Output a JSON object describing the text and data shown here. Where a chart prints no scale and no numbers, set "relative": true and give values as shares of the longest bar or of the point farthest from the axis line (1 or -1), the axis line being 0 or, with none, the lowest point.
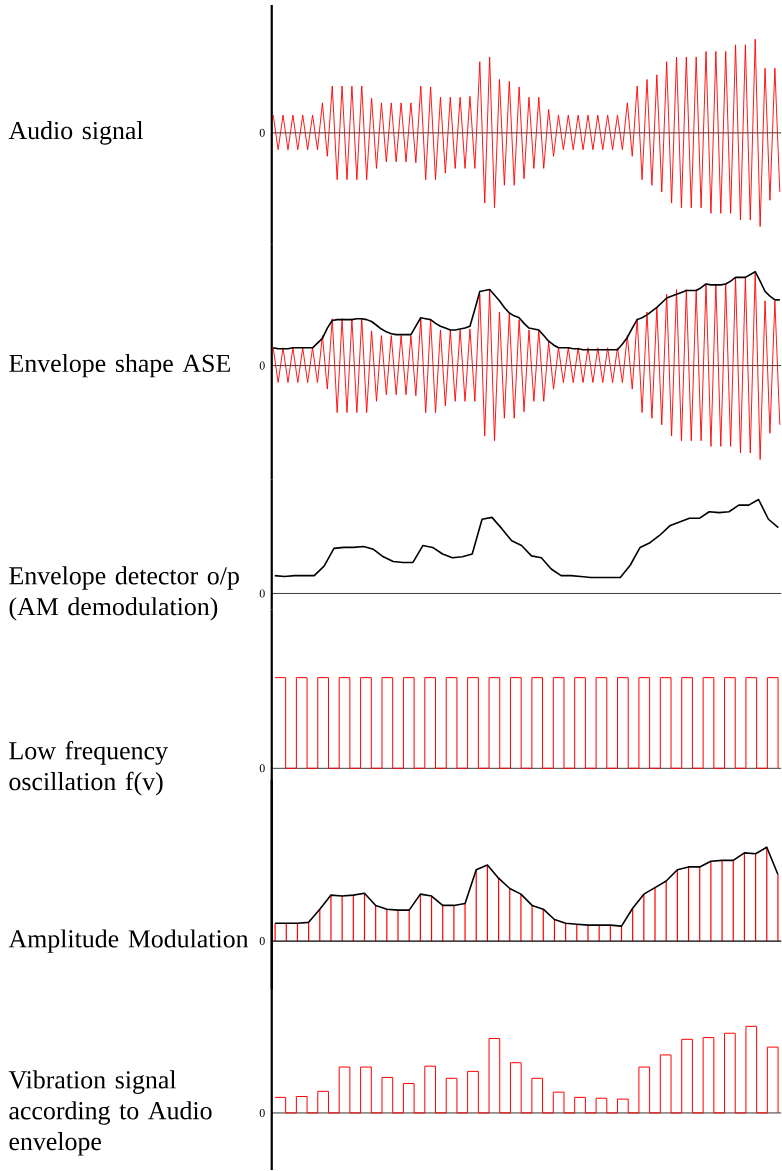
{
  "chart_data": [
    {
      "type": "line",
      "ylabel": "Audio signal",
      "relative": true,
      "annotations": [
        "0"
      ],
      "categories": [
        null,
        null,
        null,
        null,
        null,
        null,
        null,
        null,
        null,
        null,
        null,
        null,
        null,
        null,
        null,
        null,
        null,
        null,
        null,
        null,
        null,
        null,
        null,
        null,
        null,
        null,
        null,
        null,
        null,
        null,
        null,
        null,
        null,
        null,
        null,
        null,
        null,
        null,
        null,
        null,
        null,
        null,
        null,
        null,
        null,
        null,
        null,
        null,
        null,
        null,
        null,
        null,
        null,
        null,
        null,
        null,
        null,
        null,
        null,
        null,
        null,
        null,
        null,
        null,
        null,
        null,
        null,
        null,
        null,
        null,
        null,
        null,
        null,
        null,
        null,
        null,
        null,
        null,
        null,
        null,
        null,
        null,
        null,
        null,
        null,
        null,
        null,
        null,
        null,
        null,
        null,
        null,
        null,
        null,
        null,
        null,
        null,
        null,
        null,
        null,
        null,
        null,
        null,
        null
      ],
      "series": [
        {
          "color": "#ff0000",
          "values": [
            0.19,
            -0.18,
            0.19,
            -0.18,
            0.19,
            -0.18,
            0.19,
            -0.18,
            0.19,
            -0.18,
            0.32,
            -0.25,
            0.5,
            -0.5,
            0.5,
            -0.5,
            0.5,
            -0.5,
            0.5,
            -0.5,
            0.37,
            -0.38,
            0.32,
            -0.31,
            0.32,
            -0.31,
            0.32,
            -0.31,
            0.32,
            -0.32,
            0.5,
            -0.5,
            0.49,
            -0.5,
            0.38,
            -0.43,
            0.38,
            -0.38,
            0.38,
            -0.38,
            0.39,
            -0.38,
            0.76,
            -0.75,
            0.81,
            -0.8,
            0.57,
            -0.56,
            0.55,
            -0.56,
            0.49,
            -0.49,
            0.38,
            -0.38,
            0.38,
            -0.38,
            0.25,
            -0.25,
            0.19,
            -0.18,
            0.19,
            -0.18,
            0.19,
            -0.18,
            0.19,
            -0.18,
            0.19,
            -0.18,
            0.19,
            -0.18,
            0.19,
            -0.18,
            0.32,
            -0.25,
            0.5,
            -0.5,
            0.57,
            -0.56,
            0.62,
            -0.63,
            0.76,
            -0.75,
            0.81,
            -0.8,
            0.81,
            -0.8,
            0.81,
            -0.8,
            0.87,
            -0.86,
            0.87,
            -0.86,
            0.87,
            -0.86,
            0.94,
            -0.93,
            0.94,
            -0.93,
            1,
            -1,
            0.69,
            -0.72,
            0.69,
            -0.63
          ]
        }
      ]
    },
    {
      "type": "line",
      "ylabel": "Envelope shape ASE",
      "relative": true,
      "annotations": [
        "0"
      ],
      "categories": [
        null,
        null,
        null,
        null,
        null,
        null,
        null,
        null,
        null,
        null,
        null,
        null,
        null,
        null,
        null,
        null,
        null,
        null,
        null,
        null,
        null,
        null,
        null,
        null,
        null,
        null,
        null,
        null,
        null,
        null,
        null,
        null,
        null,
        null,
        null,
        null,
        null,
        null,
        null,
        null,
        null,
        null,
        null,
        null,
        null,
        null,
        null,
        null,
        null,
        null,
        null,
        null,
        null,
        null,
        null,
        null,
        null,
        null,
        null,
        null,
        null,
        null,
        null,
        null,
        null,
        null,
        null,
        null,
        null,
        null,
        null,
        null,
        null,
        null,
        null,
        null,
        null,
        null,
        null,
        null,
        null,
        null,
        null,
        null,
        null,
        null,
        null,
        null,
        null,
        null,
        null,
        null,
        null,
        null,
        null,
        null,
        null,
        null,
        null,
        null,
        null,
        null,
        null,
        null
      ],
      "series": [
        {
          "color": "#ff0000",
          "values": [
            0.19,
            -0.18,
            0.19,
            -0.18,
            0.19,
            -0.18,
            0.19,
            -0.18,
            0.19,
            -0.18,
            0.32,
            -0.25,
            0.5,
            -0.5,
            0.5,
            -0.5,
            0.5,
            -0.5,
            0.5,
            -0.5,
            0.37,
            -0.38,
            0.32,
            -0.31,
            0.32,
            -0.31,
            0.32,
            -0.31,
            0.32,
            -0.32,
            0.5,
            -0.5,
            0.49,
            -0.5,
            0.38,
            -0.43,
            0.38,
            -0.38,
            0.38,
            -0.38,
            0.39,
            -0.38,
            0.76,
            -0.75,
            0.81,
            -0.8,
            0.57,
            -0.56,
            0.55,
            -0.56,
            0.49,
            -0.49,
            0.38,
            -0.38,
            0.38,
            -0.38,
            0.25,
            -0.25,
            0.19,
            -0.18,
            0.19,
            -0.18,
            0.19,
            -0.18,
            0.19,
            -0.18,
            0.19,
            -0.18,
            0.19,
            -0.18,
            0.19,
            -0.18,
            0.32,
            -0.25,
            0.5,
            -0.5,
            0.57,
            -0.56,
            0.62,
            -0.63,
            0.76,
            -0.75,
            0.81,
            -0.8,
            0.81,
            -0.8,
            0.81,
            -0.8,
            0.87,
            -0.86,
            0.87,
            -0.86,
            0.87,
            -0.86,
            0.94,
            -0.93,
            0.94,
            -0.93,
            1,
            -1,
            0.69,
            -0.72,
            0.69,
            -0.63
          ]
        },
        {
          "color": "#000000",
          "values": [
            0.19,
            0.18,
            0.18,
            0.18,
            0.19,
            0.19,
            0.19,
            0.19,
            0.19,
            0.24,
            0.29,
            0.4,
            0.48,
            0.49,
            0.49,
            0.49,
            0.49,
            0.5,
            0.5,
            0.49,
            0.47,
            0.43,
            0.39,
            0.36,
            0.34,
            0.33,
            0.33,
            0.33,
            0.33,
            0.42,
            0.51,
            0.5,
            0.49,
            0.45,
            0.42,
            0.4,
            0.38,
            0.38,
            0.39,
            0.4,
            0.42,
            0.6,
            0.79,
            0.8,
            0.81,
            0.75,
            0.69,
            0.62,
            0.56,
            0.53,
            0.51,
            0.45,
            0.4,
            0.39,
            0.38,
            0.32,
            0.26,
            0.22,
            0.19,
            0.19,
            0.19,
            0.18,
            0.18,
            0.17,
            0.17,
            0.17,
            0.17,
            0.17,
            0.17,
            0.17,
            0.17,
            0.23,
            0.3,
            0.4,
            0.49,
            0.51,
            0.54,
            0.58,
            0.62,
            0.67,
            0.72,
            0.74,
            0.76,
            0.78,
            0.8,
            0.8,
            0.8,
            0.83,
            0.87,
            0.86,
            0.86,
            0.86,
            0.87,
            0.9,
            0.94,
            0.94,
            0.94,
            0.97,
            1,
            0.9,
            0.79,
            0.74,
            0.7,
            0.7
          ]
        }
      ]
    },
    {
      "type": "line",
      "ylabel": "Envelope detector o/p (AM demodulation)",
      "relative": true,
      "annotations": [
        "0"
      ],
      "categories": [
        null,
        null,
        null,
        null,
        null,
        null,
        null,
        null,
        null,
        null,
        null,
        null,
        null,
        null,
        null,
        null,
        null,
        null,
        null,
        null,
        null,
        null,
        null,
        null,
        null,
        null,
        null,
        null,
        null,
        null,
        null,
        null,
        null,
        null,
        null,
        null,
        null,
        null,
        null,
        null,
        null,
        null,
        null,
        null,
        null,
        null,
        null,
        null,
        null,
        null,
        null,
        null
      ],
      "series": [
        {
          "color": "#000000",
          "values": [
            0.19,
            0.18,
            0.19,
            0.19,
            0.19,
            0.29,
            0.48,
            0.49,
            0.49,
            0.5,
            0.47,
            0.39,
            0.34,
            0.33,
            0.33,
            0.51,
            0.49,
            0.42,
            0.38,
            0.39,
            0.42,
            0.79,
            0.81,
            0.69,
            0.56,
            0.51,
            0.4,
            0.38,
            0.26,
            0.19,
            0.19,
            0.18,
            0.17,
            0.17,
            0.17,
            0.17,
            0.3,
            0.49,
            0.54,
            0.62,
            0.72,
            0.76,
            0.8,
            0.8,
            0.87,
            0.86,
            0.87,
            0.94,
            0.94,
            1,
            0.79,
            0.7
          ]
        }
      ]
    },
    {
      "type": "step",
      "ylabel": "Low frequency oscillation f(v)",
      "relative": true,
      "annotations": [
        "0"
      ],
      "categories": [
        null,
        null,
        null,
        null,
        null,
        null,
        null,
        null,
        null,
        null,
        null,
        null,
        null,
        null,
        null,
        null,
        null,
        null,
        null,
        null,
        null,
        null,
        null,
        null,
        null,
        null,
        null,
        null,
        null,
        null,
        null,
        null,
        null,
        null,
        null,
        null,
        null,
        null,
        null,
        null,
        null,
        null,
        null,
        null,
        null,
        null,
        null,
        null
      ],
      "series": [
        {
          "color": "#ff0000",
          "values": [
            1,
            0,
            1,
            0,
            1,
            0,
            1,
            0,
            1,
            0,
            1,
            0,
            1,
            0,
            1,
            0,
            1,
            0,
            1,
            0,
            1,
            0,
            1,
            0,
            1,
            0,
            1,
            0,
            1,
            0,
            1,
            0,
            1,
            0,
            1,
            0,
            1,
            0,
            1,
            0,
            1,
            0,
            1,
            0,
            1,
            0,
            1,
            0
          ]
        }
      ]
    },
    {
      "type": "line",
      "relative": true,
      "categories": [
        null,
        null,
        null,
        null,
        null,
        null,
        null,
        null,
        null,
        null,
        null,
        null,
        null,
        null,
        null,
        null,
        null,
        null,
        null,
        null,
        null,
        null,
        null,
        null,
        null,
        null,
        null,
        null,
        null,
        null,
        null,
        null,
        null,
        null,
        null,
        null,
        null,
        null,
        null,
        null,
        null,
        null,
        null,
        null,
        null,
        null
      ],
      "series": [
        {
          "color": "#000000",
          "values": [
            0.19,
            0.19,
            0.19,
            0.2,
            0.34,
            0.49,
            0.48,
            0.49,
            0.51,
            0.38,
            0.34,
            0.33,
            0.33,
            0.5,
            0.48,
            0.38,
            0.38,
            0.4,
            0.76,
            0.81,
            0.67,
            0.56,
            0.5,
            0.38,
            0.34,
            0.23,
            0.19,
            0.18,
            0.17,
            0.17,
            0.17,
            0.16,
            0.35,
            0.5,
            0.57,
            0.64,
            0.76,
            0.79,
            0.79,
            0.85,
            0.86,
            0.86,
            0.94,
            0.93,
            1,
            0.71
          ]
        }
      ]
    },
    {
      "type": "bar",
      "ylabel": "Amplitude Modulation",
      "relative": true,
      "annotations": [
        "0"
      ],
      "categories": [
        null,
        null,
        null,
        null,
        null,
        null,
        null,
        null,
        null,
        null,
        null,
        null,
        null,
        null,
        null,
        null,
        null,
        null,
        null,
        null,
        null,
        null,
        null,
        null,
        null,
        null,
        null,
        null,
        null,
        null,
        null,
        null,
        null,
        null,
        null,
        null,
        null,
        null,
        null,
        null,
        null,
        null,
        null,
        null,
        null,
        null
      ],
      "series": [
        {
          "color": "#ff0000",
          "values": [
            0.19,
            0.19,
            0.19,
            0.2,
            0.34,
            0.49,
            0.48,
            0.49,
            0.51,
            0.38,
            0.34,
            0.33,
            0.33,
            0.5,
            0.48,
            0.38,
            0.38,
            0.4,
            0.76,
            0.81,
            0.67,
            0.56,
            0.5,
            0.38,
            0.34,
            0.23,
            0.19,
            0.18,
            0.17,
            0.17,
            0.17,
            0.16,
            0.35,
            0.5,
            0.57,
            0.64,
            0.76,
            0.79,
            0.79,
            0.85,
            0.86,
            0.86,
            0.94,
            0.93,
            1,
            0.71
          ]
        }
      ]
    },
    {
      "type": "step",
      "ylabel": "Vibration signal according to Audio envelope",
      "relative": true,
      "annotations": [
        "0"
      ],
      "categories": [
        null,
        null,
        null,
        null,
        null,
        null,
        null,
        null,
        null,
        null,
        null,
        null,
        null,
        null,
        null,
        null,
        null,
        null,
        null,
        null,
        null,
        null,
        null,
        null,
        null,
        null,
        null,
        null,
        null,
        null,
        null,
        null,
        null,
        null,
        null,
        null,
        null,
        null,
        null,
        null,
        null,
        null,
        null,
        null,
        null,
        null,
        null,
        null
      ],
      "series": [
        {
          "color": "#ff0000",
          "values": [
            0.18,
            0,
            0.19,
            0,
            0.25,
            0,
            0.53,
            0,
            0.53,
            0,
            0.41,
            0,
            0.34,
            0,
            0.54,
            0,
            0.4,
            0,
            0.48,
            0,
            0.86,
            0,
            0.58,
            0,
            0.4,
            0,
            0.24,
            0,
            0.18,
            0,
            0.17,
            0,
            0.16,
            0,
            0.53,
            0,
            0.67,
            0,
            0.85,
            0,
            0.87,
            0,
            0.92,
            0,
            1,
            0,
            0.76,
            0
          ]
        }
      ]
    }
  ]
}
